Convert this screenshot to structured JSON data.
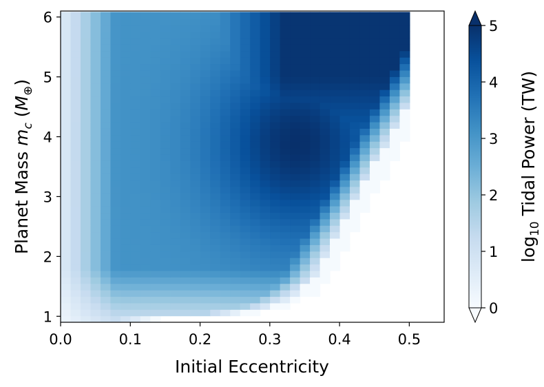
{
  "chart_data": {
    "type": "heatmap",
    "colormap": "Blues",
    "xlabel": "Initial Eccentricity",
    "ylabel_main": "Planet Mass ",
    "ylabel_var": "m",
    "ylabel_sub": "c",
    "ylabel_unit_open": " (",
    "ylabel_unit_var": "M",
    "ylabel_unit_sub": "⊕",
    "ylabel_unit_close": ")",
    "colorbar_label_prefix": "log",
    "colorbar_label_sub": "10",
    "colorbar_label_suffix": " Tidal Power (TW)",
    "xlim": [
      0.0,
      0.55
    ],
    "ylim": [
      0.9,
      6.1
    ],
    "clim": [
      0,
      5
    ],
    "colorbar_extend": "both",
    "x_ticks": [
      0.0,
      0.1,
      0.2,
      0.3,
      0.4,
      0.5
    ],
    "x_tick_labels": [
      "0.0",
      "0.1",
      "0.2",
      "0.3",
      "0.4",
      "0.5"
    ],
    "y_ticks": [
      1,
      2,
      3,
      4,
      5,
      6
    ],
    "y_tick_labels": [
      "1",
      "2",
      "3",
      "4",
      "5",
      "6"
    ],
    "colorbar_ticks": [
      0,
      1,
      2,
      3,
      4,
      5
    ],
    "colorbar_tick_labels": [
      "0",
      "1",
      "2",
      "3",
      "4",
      "5"
    ],
    "grid": {
      "x_start": 0.0,
      "x_step": 0.0143,
      "nx": 35,
      "y_start": 0.9,
      "y_step": 0.108,
      "ny": 48
    },
    "cutoff_eccentricity": [
      0.13,
      0.26,
      0.31,
      0.33,
      0.345,
      0.355,
      0.365,
      0.37,
      0.375,
      0.38,
      0.385,
      0.39,
      0.395,
      0.4,
      0.405,
      0.41,
      0.415,
      0.42,
      0.425,
      0.43,
      0.435,
      0.44,
      0.445,
      0.45,
      0.455,
      0.46,
      0.465,
      0.47,
      0.475,
      0.48,
      0.485,
      0.49,
      0.495,
      0.5,
      0.505,
      0.51,
      0.515,
      0.52,
      0.525,
      0.53,
      0.535,
      0.54,
      0.545,
      0.55,
      0.55,
      0.55,
      0.55,
      0.55
    ],
    "model_note_values": {
      "near_zero_ecc_log_power": 0.6,
      "mid_plateau_log_power": 3.1,
      "hotspot_center": [
        0.34,
        3.9
      ],
      "hotspot_log_power": 5.0
    }
  }
}
